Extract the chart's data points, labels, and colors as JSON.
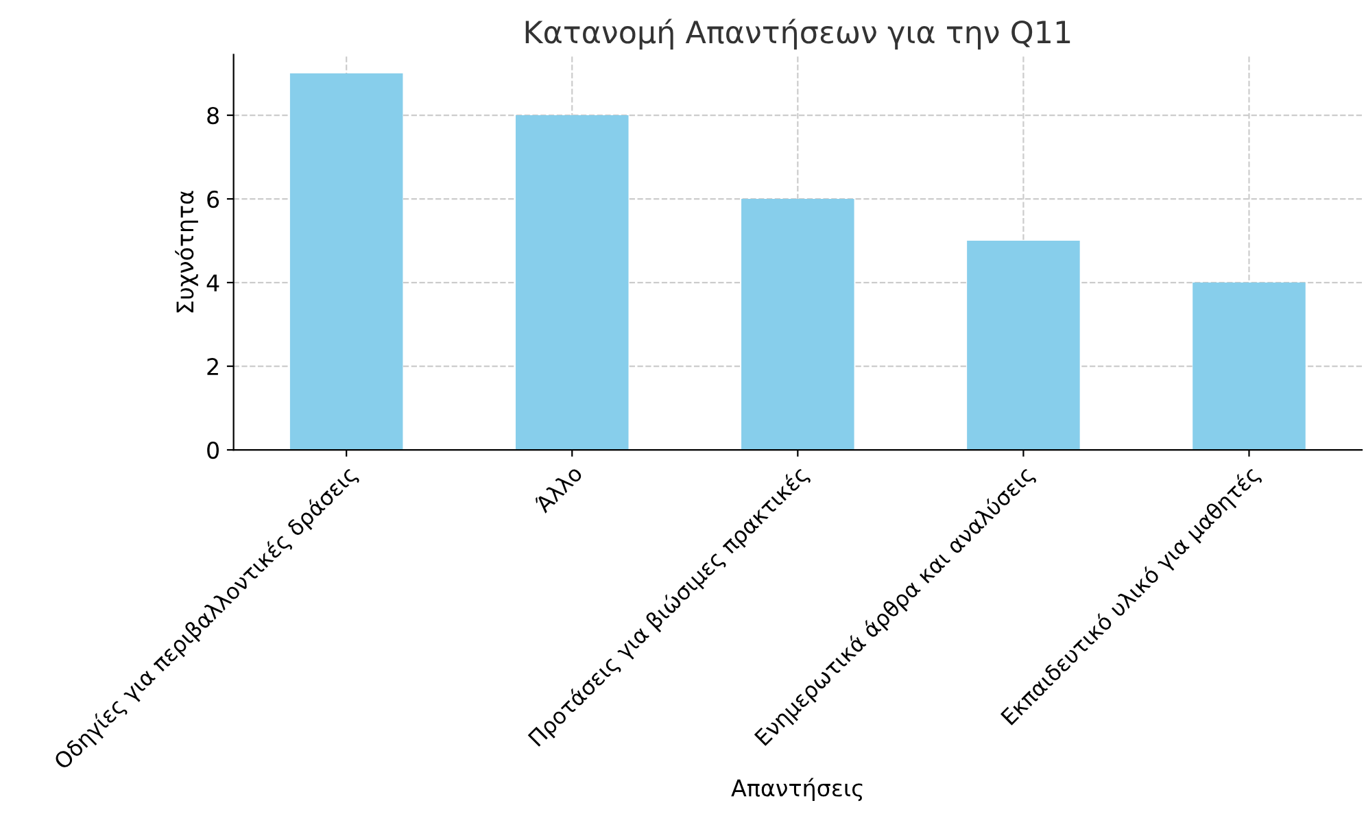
{
  "chart_data": {
    "type": "bar",
    "title": "Κατανομή Απαντήσεων για την Q11",
    "xlabel": "Απαντήσεις",
    "ylabel": "Συχνότητα",
    "categories": [
      "Οδηγίες για περιβαλλοντικές δράσεις",
      "Άλλο",
      "Προτάσεις για βιώσιμες πρακτικές",
      "Ενημερωτικά άρθρα και αναλύσεις",
      "Εκπαιδευτικό υλικό για μαθητές"
    ],
    "values": [
      9,
      8,
      6,
      5,
      4
    ],
    "color": "#87ceeb",
    "ylim": [
      0,
      9.45
    ],
    "yticks": [
      0,
      2,
      4,
      6,
      8
    ],
    "grid": true,
    "legend": false
  }
}
